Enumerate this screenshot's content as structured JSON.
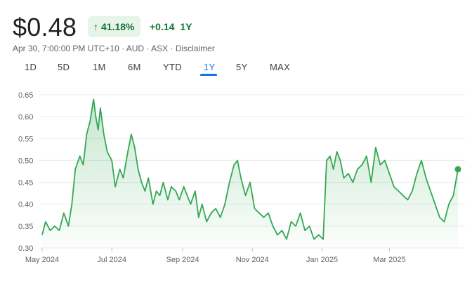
{
  "quote": {
    "price": "$0.48",
    "arrow_icon": "up-arrow",
    "percent_change": "41.18%",
    "abs_change": "+0.14",
    "period": "1Y",
    "timestamp": "Apr 30, 7:00:00 PM UTC+10",
    "currency": "AUD",
    "exchange": "ASX",
    "disclaimer": "Disclaimer",
    "separator": "·"
  },
  "tabs": [
    {
      "label": "1D",
      "active": false
    },
    {
      "label": "5D",
      "active": false
    },
    {
      "label": "1M",
      "active": false
    },
    {
      "label": "6M",
      "active": false
    },
    {
      "label": "YTD",
      "active": false
    },
    {
      "label": "1Y",
      "active": true
    },
    {
      "label": "5Y",
      "active": false
    },
    {
      "label": "MAX",
      "active": false
    }
  ],
  "colors": {
    "line": "#34a853",
    "fill_top": "#34a853",
    "grid": "#e8eaed",
    "positive_text": "#137333",
    "badge_bg": "#e6f4ea",
    "active_tab": "#1a73e8"
  },
  "chart_data": {
    "type": "area",
    "xlabel": "",
    "ylabel": "",
    "ylim": [
      0.3,
      0.65
    ],
    "y_ticks": [
      0.3,
      0.35,
      0.4,
      0.45,
      0.5,
      0.55,
      0.6,
      0.65
    ],
    "y_tick_labels": [
      "0.30",
      "0.35",
      "0.40",
      "0.45",
      "0.50",
      "0.55",
      "0.60",
      "0.65"
    ],
    "x_tick_labels": [
      "May 2024",
      "Jul 2024",
      "Sep 2024",
      "Nov 2024",
      "Jan 2025",
      "Mar 2025"
    ],
    "x_tick_dates": [
      "2024-05-01",
      "2024-07-01",
      "2024-09-01",
      "2024-11-01",
      "2025-01-01",
      "2025-03-01"
    ],
    "xlim": [
      "2024-05-01",
      "2025-04-30"
    ],
    "grid": true,
    "series": [
      {
        "x": [
          "2024-05-01",
          "2024-05-04",
          "2024-05-08",
          "2024-05-12",
          "2024-05-16",
          "2024-05-20",
          "2024-05-24",
          "2024-05-27",
          "2024-05-30",
          "2024-06-03",
          "2024-06-06",
          "2024-06-09",
          "2024-06-12",
          "2024-06-15",
          "2024-06-17",
          "2024-06-19",
          "2024-06-21",
          "2024-06-24",
          "2024-06-27",
          "2024-07-01",
          "2024-07-04",
          "2024-07-08",
          "2024-07-11",
          "2024-07-15",
          "2024-07-18",
          "2024-07-21",
          "2024-07-24",
          "2024-07-27",
          "2024-07-30",
          "2024-08-02",
          "2024-08-06",
          "2024-08-09",
          "2024-08-12",
          "2024-08-15",
          "2024-08-19",
          "2024-08-22",
          "2024-08-26",
          "2024-08-29",
          "2024-09-02",
          "2024-09-05",
          "2024-09-08",
          "2024-09-12",
          "2024-09-15",
          "2024-09-18",
          "2024-09-22",
          "2024-09-26",
          "2024-09-30",
          "2024-10-04",
          "2024-10-08",
          "2024-10-12",
          "2024-10-16",
          "2024-10-19",
          "2024-10-22",
          "2024-10-26",
          "2024-10-30",
          "2024-11-03",
          "2024-11-07",
          "2024-11-11",
          "2024-11-15",
          "2024-11-19",
          "2024-11-23",
          "2024-11-27",
          "2024-12-01",
          "2024-12-05",
          "2024-12-09",
          "2024-12-13",
          "2024-12-17",
          "2024-12-21",
          "2024-12-25",
          "2024-12-29",
          "2025-01-02",
          "2025-01-05",
          "2025-01-08",
          "2025-01-11",
          "2025-01-14",
          "2025-01-17",
          "2025-01-20",
          "2025-01-24",
          "2025-01-28",
          "2025-02-01",
          "2025-02-05",
          "2025-02-09",
          "2025-02-13",
          "2025-02-17",
          "2025-02-21",
          "2025-02-25",
          "2025-03-01",
          "2025-03-05",
          "2025-03-09",
          "2025-03-13",
          "2025-03-17",
          "2025-03-21",
          "2025-03-25",
          "2025-03-29",
          "2025-04-02",
          "2025-04-06",
          "2025-04-10",
          "2025-04-14",
          "2025-04-18",
          "2025-04-22",
          "2025-04-26",
          "2025-04-30"
        ],
        "values": [
          0.33,
          0.36,
          0.34,
          0.35,
          0.34,
          0.38,
          0.35,
          0.4,
          0.48,
          0.51,
          0.49,
          0.56,
          0.59,
          0.64,
          0.6,
          0.57,
          0.62,
          0.56,
          0.52,
          0.5,
          0.44,
          0.48,
          0.46,
          0.52,
          0.56,
          0.53,
          0.48,
          0.45,
          0.43,
          0.46,
          0.4,
          0.43,
          0.42,
          0.45,
          0.41,
          0.44,
          0.43,
          0.41,
          0.44,
          0.42,
          0.4,
          0.43,
          0.37,
          0.4,
          0.36,
          0.38,
          0.39,
          0.37,
          0.4,
          0.45,
          0.49,
          0.5,
          0.46,
          0.42,
          0.45,
          0.39,
          0.38,
          0.37,
          0.38,
          0.35,
          0.33,
          0.34,
          0.32,
          0.36,
          0.35,
          0.38,
          0.34,
          0.35,
          0.32,
          0.33,
          0.32,
          0.5,
          0.51,
          0.48,
          0.52,
          0.5,
          0.46,
          0.47,
          0.45,
          0.48,
          0.49,
          0.51,
          0.45,
          0.53,
          0.49,
          0.5,
          0.47,
          0.44,
          0.43,
          0.42,
          0.41,
          0.43,
          0.47,
          0.5,
          0.46,
          0.43,
          0.4,
          0.37,
          0.36,
          0.4,
          0.42,
          0.48
        ]
      }
    ],
    "last_point_marker": true
  }
}
